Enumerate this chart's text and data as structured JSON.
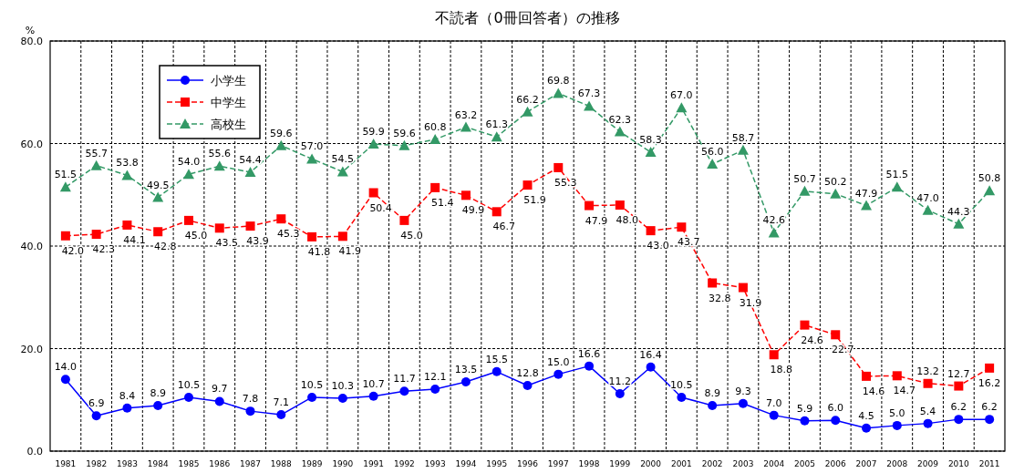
{
  "chart_data": {
    "type": "line",
    "title": "不読者（0冊回答者）の推移",
    "ylabel": "%",
    "categories": [
      "1981",
      "1982",
      "1983",
      "1984",
      "1985",
      "1986",
      "1987",
      "1988",
      "1989",
      "1990",
      "1991",
      "1992",
      "1993",
      "1994",
      "1995",
      "1996",
      "1997",
      "1998",
      "1999",
      "2000",
      "2001",
      "2002",
      "2003",
      "2004",
      "2005",
      "2006",
      "2007",
      "2008",
      "2009",
      "2010",
      "2011"
    ],
    "series": [
      {
        "name": "小学生",
        "color": "#0000ff",
        "marker": "circle",
        "line_style": "solid",
        "values": [
          14.0,
          6.9,
          8.4,
          8.9,
          10.5,
          9.7,
          7.8,
          7.1,
          10.5,
          10.3,
          10.7,
          11.7,
          12.1,
          13.5,
          15.5,
          12.8,
          15.0,
          16.6,
          11.2,
          16.4,
          10.5,
          8.9,
          9.3,
          7.0,
          5.9,
          6.0,
          4.5,
          5.0,
          5.4,
          6.2,
          6.2
        ],
        "value_labels": [
          "14.0",
          "6.9",
          "8.4",
          "8.9",
          "10.5",
          "9.7",
          "7.8",
          "7.1",
          "10.5",
          "10.3",
          "10.7",
          "11.7",
          "12.1",
          "13.5",
          "15.5",
          "12.8",
          "15.0",
          "16.6",
          "11.2",
          "16.4",
          "10.5",
          "8.9",
          "9.3",
          "7.0",
          "5.9",
          "6.0",
          "4.5",
          "5.0",
          "5.4",
          "6.2",
          "6.2"
        ]
      },
      {
        "name": "中学生",
        "color": "#ff0000",
        "marker": "square",
        "line_style": "dashed",
        "values": [
          42.0,
          42.3,
          44.1,
          42.8,
          45.0,
          43.5,
          43.9,
          45.3,
          41.8,
          41.9,
          50.4,
          45.0,
          51.4,
          49.9,
          46.7,
          51.9,
          55.3,
          47.9,
          48.0,
          43.0,
          43.7,
          32.8,
          31.9,
          18.8,
          24.6,
          22.7,
          14.6,
          14.7,
          13.2,
          12.7,
          16.2
        ],
        "value_labels": [
          "42.0",
          "42.3",
          "44.1",
          "42.8",
          "45.0",
          "43.5",
          "43.9",
          "45.3",
          "41.8",
          "41.9",
          "50.4",
          "45.0",
          "51.4",
          "49.9",
          "46.7",
          "51.9",
          "55.3",
          "47.9",
          "48.0",
          "43.0",
          "43.7",
          "32.8",
          "31.9",
          "18.8",
          "24.6",
          "22.7",
          "14.6",
          "14.7",
          "13.2",
          "12.7",
          "16.2"
        ]
      },
      {
        "name": "高校生",
        "color": "#339966",
        "marker": "triangle",
        "line_style": "dashed",
        "values": [
          51.5,
          55.7,
          53.8,
          49.5,
          54.0,
          55.6,
          54.4,
          59.6,
          57.0,
          54.5,
          59.9,
          59.6,
          60.8,
          63.2,
          61.3,
          66.2,
          69.8,
          67.3,
          62.3,
          58.3,
          67.0,
          56.0,
          58.7,
          42.6,
          50.7,
          50.2,
          47.9,
          51.5,
          47.0,
          44.3,
          50.8
        ],
        "value_labels": [
          "51.5",
          "55.7",
          "53.8",
          "49.5",
          "54.0",
          "55.6",
          "54.4",
          "59.6",
          "57.0",
          "54.5",
          "59.9",
          "59.6",
          "60.8",
          "63.2",
          "61.3",
          "66.2",
          "69.8",
          "67.3",
          "62.3",
          "58.3",
          "67.0",
          "56.0",
          "58.7",
          "42.6",
          "50.7",
          "50.2",
          "47.9",
          "51.5",
          "47.0",
          "44.3",
          "50.8"
        ]
      }
    ],
    "ylim": [
      0,
      80
    ],
    "yticks": [
      {
        "value": 0,
        "label": "0.0"
      },
      {
        "value": 20,
        "label": "20.0"
      },
      {
        "value": 40,
        "label": "40.0"
      },
      {
        "value": 60,
        "label": "60.0"
      },
      {
        "value": 80,
        "label": "80.0"
      }
    ],
    "grid": true,
    "legend": "top left"
  }
}
